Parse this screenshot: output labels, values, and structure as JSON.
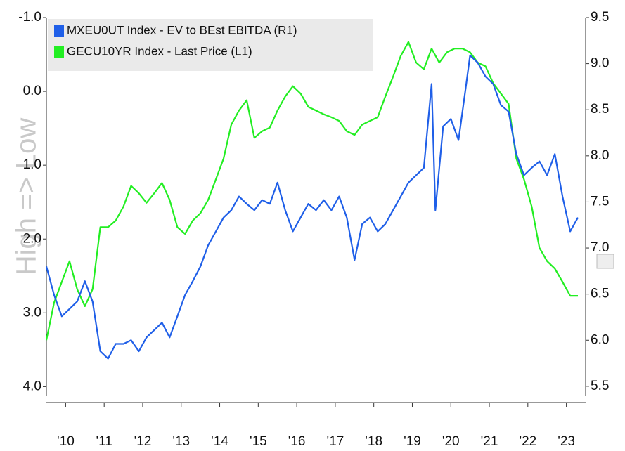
{
  "chart_data": {
    "type": "line",
    "y_label": "High => Low",
    "xlim": [
      2010,
      2024
    ],
    "xticks": [
      {
        "value": 2010.5,
        "label": "'10"
      },
      {
        "value": 2011.5,
        "label": "'11"
      },
      {
        "value": 2012.5,
        "label": "'12"
      },
      {
        "value": 2013.5,
        "label": "'13"
      },
      {
        "value": 2014.5,
        "label": "'14"
      },
      {
        "value": 2015.5,
        "label": "'15"
      },
      {
        "value": 2016.5,
        "label": "'16"
      },
      {
        "value": 2017.5,
        "label": "'17"
      },
      {
        "value": 2018.5,
        "label": "'18"
      },
      {
        "value": 2019.5,
        "label": "'19"
      },
      {
        "value": 2020.5,
        "label": "'20"
      },
      {
        "value": 2021.5,
        "label": "'21"
      },
      {
        "value": 2022.5,
        "label": "'22"
      },
      {
        "value": 2023.5,
        "label": "'23"
      }
    ],
    "ylim": [
      4.12,
      -1.0
    ],
    "yticks": [
      {
        "value": -1,
        "label": "-1.0"
      },
      {
        "value": 0,
        "label": "0.0"
      },
      {
        "value": 1,
        "label": "1.0"
      },
      {
        "value": 2,
        "label": "2.0"
      },
      {
        "value": 3,
        "label": "3.0"
      },
      {
        "value": 4,
        "label": "4.0"
      }
    ],
    "y2lim": [
      5.4,
      9.5
    ],
    "y2ticks": [
      9.5,
      {
        "value": 9,
        "label": "9.0"
      },
      8.5,
      {
        "value": 8,
        "label": "8.0"
      },
      7.5,
      {
        "value": 7,
        "label": "7.0"
      },
      6.5,
      {
        "value": 6,
        "label": "6.0"
      },
      5.5
    ],
    "series": [
      {
        "name": "MXEU0UT Index - EV to BEst EBITDA (R1)",
        "color": "#1f5fe8",
        "axis": "y2",
        "x": [
          2010.0,
          2010.2,
          2010.4,
          2010.6,
          2010.8,
          2011.0,
          2011.2,
          2011.4,
          2011.6,
          2011.8,
          2012.0,
          2012.2,
          2012.4,
          2012.6,
          2012.8,
          2013.0,
          2013.2,
          2013.4,
          2013.6,
          2013.8,
          2014.0,
          2014.2,
          2014.4,
          2014.6,
          2014.8,
          2015.0,
          2015.2,
          2015.4,
          2015.6,
          2015.8,
          2016.0,
          2016.2,
          2016.4,
          2016.6,
          2016.8,
          2017.0,
          2017.2,
          2017.4,
          2017.6,
          2017.8,
          2018.0,
          2018.2,
          2018.4,
          2018.6,
          2018.8,
          2019.0,
          2019.2,
          2019.4,
          2019.6,
          2019.8,
          2020.0,
          2020.1,
          2020.3,
          2020.5,
          2020.7,
          2020.9,
          2021.0,
          2021.2,
          2021.4,
          2021.6,
          2021.8,
          2022.0,
          2022.2,
          2022.4,
          2022.6,
          2022.8,
          2023.0,
          2023.2,
          2023.4,
          2023.6,
          2023.8
        ],
        "values": [
          6.8,
          6.49,
          6.26,
          6.34,
          6.42,
          6.64,
          6.42,
          5.88,
          5.8,
          5.96,
          5.96,
          6.0,
          5.88,
          6.03,
          6.11,
          6.19,
          6.03,
          6.26,
          6.49,
          6.64,
          6.8,
          7.03,
          7.18,
          7.33,
          7.41,
          7.56,
          7.48,
          7.41,
          7.52,
          7.48,
          7.71,
          7.41,
          7.18,
          7.33,
          7.48,
          7.41,
          7.52,
          7.41,
          7.56,
          7.33,
          6.87,
          7.26,
          7.33,
          7.18,
          7.26,
          7.41,
          7.56,
          7.71,
          7.79,
          7.87,
          8.78,
          7.41,
          8.32,
          8.4,
          8.17,
          8.78,
          9.09,
          9.01,
          8.86,
          8.78,
          8.55,
          8.48,
          8.02,
          7.79,
          7.87,
          7.94,
          7.79,
          8.02,
          7.56,
          7.18,
          7.33
        ]
      },
      {
        "name": "GECU10YR Index - Last Price (L1)",
        "color": "#22ee22",
        "x": [
          2010.0,
          2010.2,
          2010.4,
          2010.6,
          2010.8,
          2011.0,
          2011.2,
          2011.4,
          2011.6,
          2011.8,
          2012.0,
          2012.2,
          2012.4,
          2012.6,
          2012.8,
          2013.0,
          2013.2,
          2013.4,
          2013.6,
          2013.8,
          2014.0,
          2014.2,
          2014.4,
          2014.6,
          2014.8,
          2015.0,
          2015.2,
          2015.4,
          2015.6,
          2015.8,
          2016.0,
          2016.2,
          2016.4,
          2016.6,
          2016.8,
          2017.0,
          2017.2,
          2017.4,
          2017.6,
          2017.8,
          2018.0,
          2018.2,
          2018.4,
          2018.6,
          2018.8,
          2019.0,
          2019.2,
          2019.4,
          2019.6,
          2019.8,
          2020.0,
          2020.2,
          2020.4,
          2020.6,
          2020.8,
          2021.0,
          2021.2,
          2021.4,
          2021.6,
          2021.8,
          2022.0,
          2022.2,
          2022.4,
          2022.6,
          2022.8,
          2023.0,
          2023.2,
          2023.4,
          2023.6,
          2023.8
        ],
        "values": [
          3.37,
          2.86,
          2.58,
          2.3,
          2.68,
          2.91,
          2.68,
          1.84,
          1.84,
          1.75,
          1.56,
          1.28,
          1.38,
          1.51,
          1.38,
          1.24,
          1.47,
          1.84,
          1.93,
          1.75,
          1.65,
          1.47,
          1.19,
          0.91,
          0.45,
          0.26,
          0.12,
          0.63,
          0.54,
          0.49,
          0.26,
          0.07,
          -0.07,
          0.03,
          0.21,
          0.26,
          0.31,
          0.35,
          0.4,
          0.54,
          0.59,
          0.45,
          0.4,
          0.35,
          0.07,
          -0.2,
          -0.48,
          -0.67,
          -0.39,
          -0.3,
          -0.58,
          -0.39,
          -0.53,
          -0.58,
          -0.58,
          -0.53,
          -0.39,
          -0.34,
          -0.11,
          0.03,
          0.17,
          0.91,
          1.19,
          1.56,
          2.12,
          2.3,
          2.4,
          2.58,
          2.77,
          2.77
        ]
      }
    ]
  }
}
